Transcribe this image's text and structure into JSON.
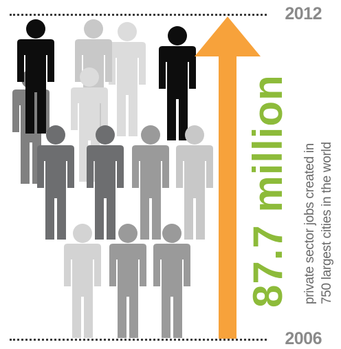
{
  "years": {
    "end": "2012",
    "start": "2006"
  },
  "headline": {
    "value": "87.7 million"
  },
  "caption": {
    "line1": "private sector jobs created in",
    "line2": "750 largest cities in the world"
  },
  "colors": {
    "arrow": "#f7a23b",
    "headline": "#8dbb3a",
    "figure_black": "#0d0d0d",
    "figure_dark": "#6d6e70",
    "figure_mid": "#9a9a9a",
    "figure_light": "#c8c8c8",
    "figure_pale": "#dcdcdc"
  }
}
